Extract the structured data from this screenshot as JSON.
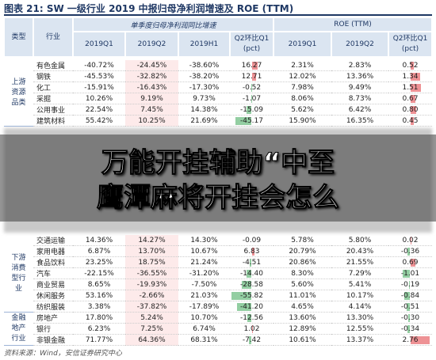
{
  "title": "图表 21: SW 一级行业 2019 中报归母净利润增速及 ROE (TTM)",
  "table": {
    "header": {
      "type": "类型",
      "industry": "行业",
      "group1": "单季度归母净利润同比增速",
      "group2": "ROE (TTM)",
      "columns": [
        "2019Q1",
        "2019Q2",
        "2019H1",
        "Q2环比Q1 (pct)",
        "2019Q1",
        "2019Q2",
        "Q2环比Q1 (pct)"
      ]
    },
    "groups": [
      {
        "type": "上游资源品类",
        "rows": [
          [
            "有色金属",
            "-40.72%",
            "-24.45%",
            "-38.60%",
            "16.27",
            "2.31%",
            "2.83%",
            "0.52"
          ],
          [
            "钢铁",
            "-45.53%",
            "-32.82%",
            "-38.20%",
            "12.71",
            "12.02%",
            "13.36%",
            "1.34"
          ],
          [
            "化工",
            "-15.91%",
            "-16.43%",
            "-17.30%",
            "-0.52",
            "7.98%",
            "9.49%",
            "1.51"
          ],
          [
            "采掘",
            "10.26%",
            "9.19%",
            "9.73%",
            "-1.07",
            "8.06%",
            "8.73%",
            "0.67"
          ],
          [
            "公用事业",
            "22.54%",
            "7.45%",
            "14.38%",
            "-15.09",
            "5.62%",
            "6.42%",
            "0.80"
          ],
          [
            "建筑材料",
            "55.42%",
            "10.25%",
            "21.69%",
            "-45.17",
            "15.90%",
            "16.35%",
            "0.45"
          ]
        ]
      },
      {
        "type": "下游消费型行业",
        "rows": [
          [
            "交通运输",
            "14.36%",
            "14.27%",
            "14.30%",
            "-0.09",
            "5.78%",
            "5.80%",
            "0.02"
          ],
          [
            "家用电器",
            "6.87%",
            "13.70%",
            "10.67%",
            "6.83",
            "20.79%",
            "20.43%",
            "-0.36"
          ],
          [
            "食品饮料",
            "23.25%",
            "18.75%",
            "21.24%",
            "-4.51",
            "20.86%",
            "21.55%",
            "0.69"
          ],
          [
            "汽车",
            "-22.15%",
            "-36.55%",
            "-31.20%",
            "-14.40",
            "8.30%",
            "7.29%",
            "-1.01"
          ],
          [
            "商业贸易",
            "8.65%",
            "-19.93%",
            "-7.50%",
            "-28.58",
            "5.60%",
            "5.41%",
            "-0.19"
          ],
          [
            "休闲服务",
            "53.16%",
            "-2.66%",
            "21.03%",
            "-55.82",
            "11.01%",
            "10.17%",
            "-0.84"
          ],
          [
            "纺织服装",
            "3.38%",
            "-37.82%",
            "-17.89%",
            "-41.20",
            "4.65%",
            "4.14%",
            "-0.51"
          ]
        ]
      },
      {
        "type": "金融地产行业",
        "rows": [
          [
            "房地产",
            "17.80%",
            "5.24%",
            "10.70%",
            "-12.56",
            "13.60%",
            "13.30%",
            "-0.30"
          ],
          [
            "银行",
            "6.23%",
            "7.25%",
            "6.74%",
            "1.02",
            "12.89%",
            "12.55%",
            "-0.34"
          ],
          [
            "非银金融",
            "71.77%",
            "64.36%",
            "68.31%",
            "-7.42",
            "10.61%",
            "13.37%",
            "2.76"
          ]
        ]
      }
    ]
  },
  "source": "资料来源：Wind，安信证券研究中心",
  "overlay": [
    "万能开挂辅助“中至",
    "鹰潭麻将开挂会怎么"
  ]
}
